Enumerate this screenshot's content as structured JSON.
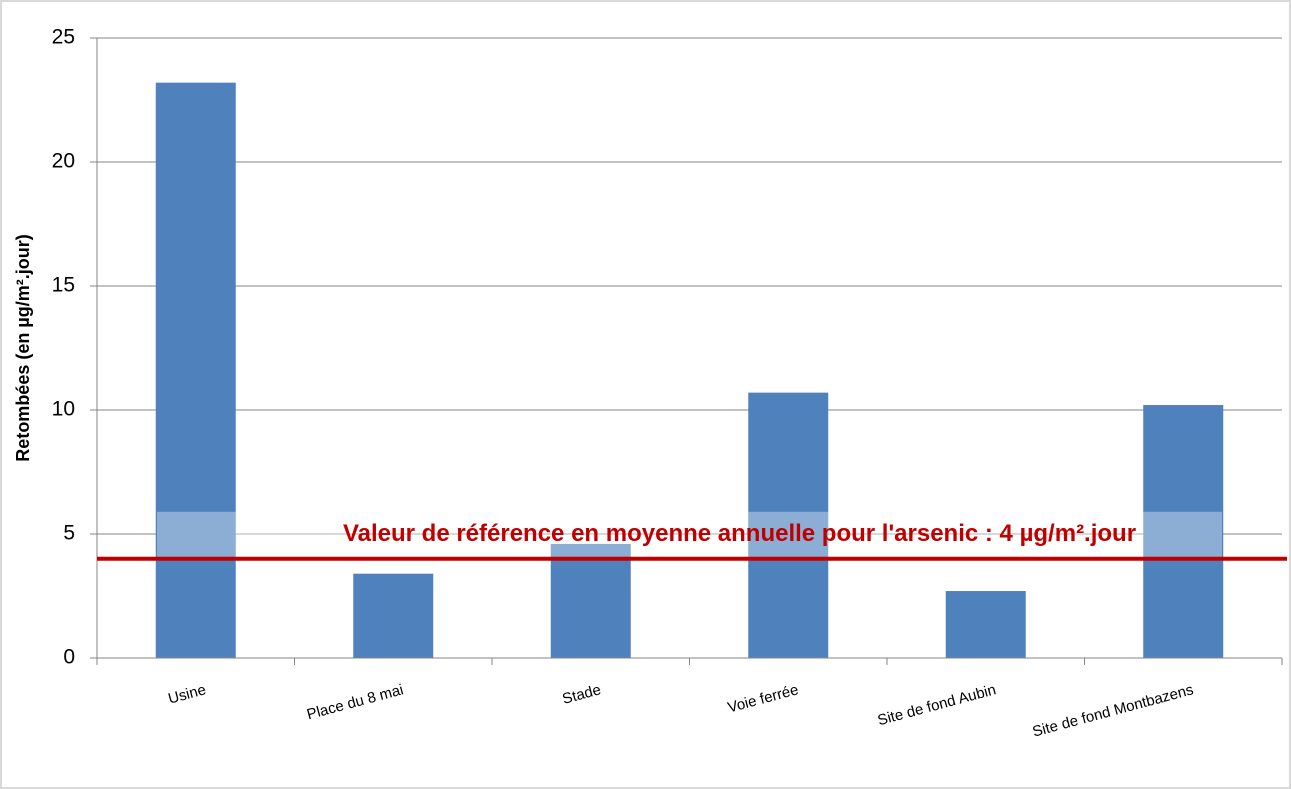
{
  "chart_data": {
    "type": "bar",
    "ylabel": "Retombées  (en µg/m².jour)",
    "categories": [
      "Usine",
      "Place du 8 mai",
      "Stade",
      "Voie ferrée",
      "Site de fond Aubin",
      "Site de fond Montbazens"
    ],
    "values": [
      23.2,
      3.4,
      4.6,
      10.7,
      2.7,
      10.2
    ],
    "color": "#4f81bd",
    "ylim": [
      0,
      25
    ],
    "yticks": [
      0,
      5,
      10,
      15,
      20,
      25
    ],
    "grid": true,
    "reference_line": {
      "value": 4,
      "color": "#c00000",
      "label": "Valeur de référence en moyenne annuelle pour l'arsenic : 4 µg/m².jour"
    }
  }
}
